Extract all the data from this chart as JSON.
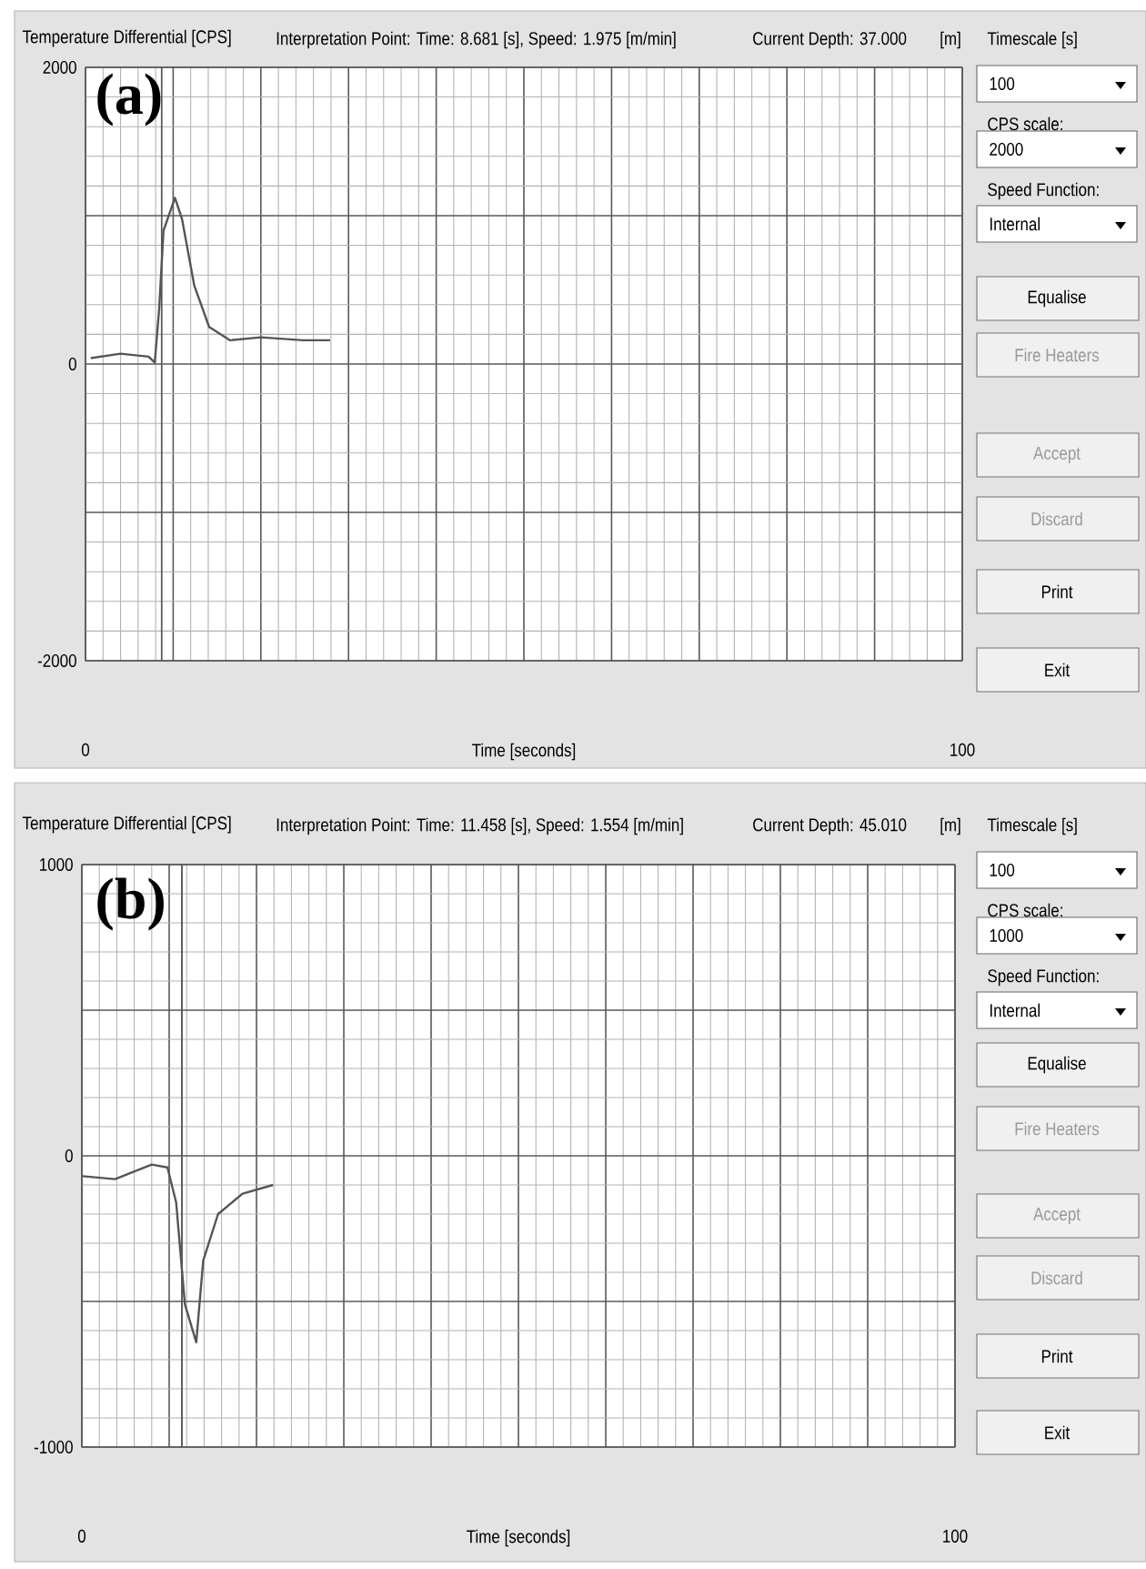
{
  "chart_data": [
    {
      "type": "line",
      "ylabel": "Temperature Differential [CPS]",
      "xlabel": "Time [seconds]",
      "x": [
        0.6,
        4.0,
        7.2,
        7.9,
        8.4,
        8.9,
        10.2,
        11.0,
        12.4,
        14.1,
        16.5,
        20.0,
        24.8,
        27.9
      ],
      "values": [
        40,
        70,
        50,
        10,
        370,
        900,
        1120,
        980,
        530,
        250,
        160,
        180,
        160,
        160
      ],
      "color": "#555555",
      "xlim": [
        0,
        100
      ],
      "ylim": [
        -2000,
        2000
      ],
      "xticks": [
        0,
        {
          "value": 10,
          "label": null
        },
        {
          "value": 20,
          "label": null
        },
        {
          "value": 30,
          "label": null
        },
        {
          "value": 40,
          "label": null
        },
        {
          "value": 50,
          "label": null
        },
        {
          "value": 60,
          "label": null
        },
        {
          "value": 70,
          "label": null
        },
        {
          "value": 80,
          "label": null
        },
        {
          "value": 90,
          "label": null
        },
        100
      ],
      "yticks": [
        -2000,
        {
          "value": -1000,
          "label": null
        },
        0,
        {
          "value": 1000,
          "label": null
        },
        2000
      ],
      "grid": true,
      "ref_lines": [
        {
          "axis": "x",
          "value": 8.681,
          "color": "#555555"
        }
      ],
      "annotations": [
        "(a)",
        "Interpretation Point:  Time: 8.681 [s], Speed: 1.975 [m/min]",
        "Current Depth:  37.000",
        "[m]",
        "Timescale [s]",
        "100",
        "CPS scale:",
        "2000",
        "Speed Function:",
        "Internal",
        "Equalise",
        "Fire Heaters",
        "Accept",
        "Discard",
        "Print",
        "Exit"
      ]
    },
    {
      "type": "line",
      "ylabel": "Temperature Differential [CPS]",
      "xlabel": "Time [seconds]",
      "x": [
        0.1,
        3.8,
        8.0,
        9.8,
        10.8,
        11.8,
        13.1,
        13.9,
        15.6,
        18.4,
        21.9
      ],
      "values": [
        -70,
        -80,
        -30,
        -40,
        -160,
        -510,
        -640,
        -360,
        -200,
        -130,
        -100
      ],
      "color": "#555555",
      "xlim": [
        0,
        100
      ],
      "ylim": [
        -1000,
        1000
      ],
      "xticks": [
        0,
        {
          "value": 10,
          "label": null
        },
        {
          "value": 20,
          "label": null
        },
        {
          "value": 30,
          "label": null
        },
        {
          "value": 40,
          "label": null
        },
        {
          "value": 50,
          "label": null
        },
        {
          "value": 60,
          "label": null
        },
        {
          "value": 70,
          "label": null
        },
        {
          "value": 80,
          "label": null
        },
        {
          "value": 90,
          "label": null
        },
        100
      ],
      "yticks": [
        -1000,
        {
          "value": -500,
          "label": null
        },
        0,
        {
          "value": 500,
          "label": null
        },
        1000
      ],
      "grid": true,
      "ref_lines": [
        {
          "axis": "x",
          "value": 11.458,
          "color": "#555555"
        }
      ],
      "annotations": [
        "(b)",
        "Interpretation Point:  Time: 11.458 [s], Speed: 1.554 [m/min]",
        "Current Depth:  45.010",
        "[m]",
        "Timescale [s]",
        "100",
        "CPS scale:",
        "1000",
        "Speed Function:",
        "Internal",
        "Equalise",
        "Fire Heaters",
        "Accept",
        "Discard",
        "Print",
        "Exit"
      ]
    }
  ]
}
